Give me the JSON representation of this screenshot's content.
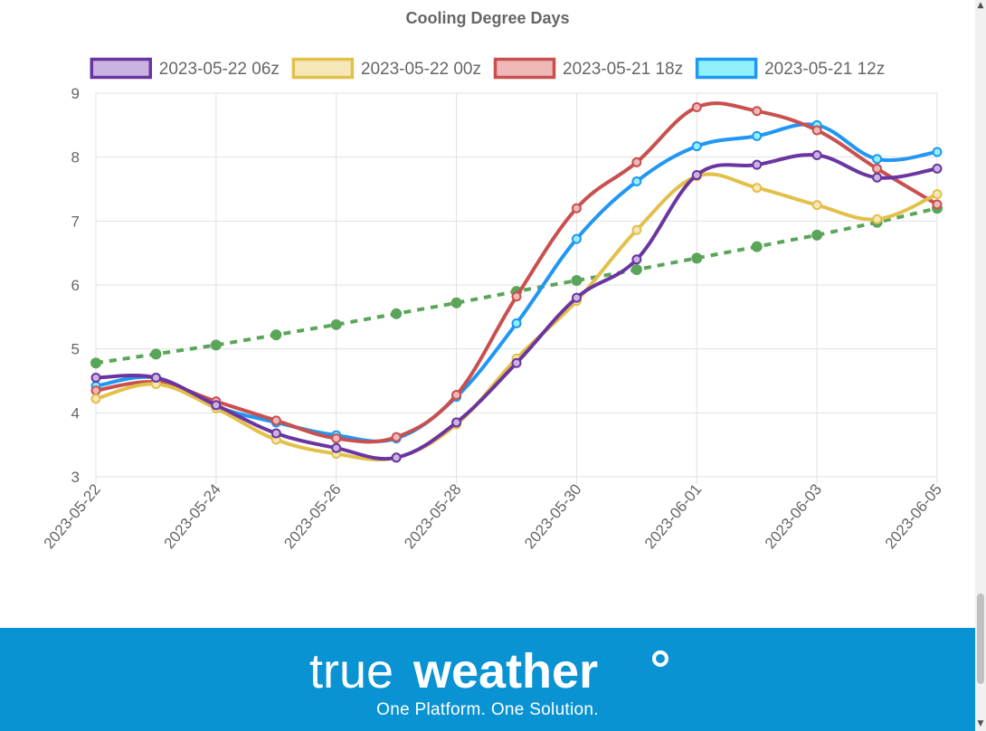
{
  "chart_data": {
    "type": "line",
    "title": "Cooling Degree Days",
    "x": [
      "2023-05-22",
      "2023-05-23",
      "2023-05-24",
      "2023-05-25",
      "2023-05-26",
      "2023-05-27",
      "2023-05-28",
      "2023-05-29",
      "2023-05-30",
      "2023-05-31",
      "2023-06-01",
      "2023-06-02",
      "2023-06-03",
      "2023-06-04",
      "2023-06-05"
    ],
    "x_tick_labels": [
      "2023-05-22",
      "2023-05-24",
      "2023-05-26",
      "2023-05-28",
      "2023-05-30",
      "2023-06-01",
      "2023-06-03",
      "2023-06-05"
    ],
    "ylim": [
      3,
      9
    ],
    "y_ticks": [
      3,
      4,
      5,
      6,
      7,
      8,
      9
    ],
    "grid": true,
    "legend_position": "top",
    "series": [
      {
        "name": "2023-05-22 06z",
        "color": "#6a35a0",
        "fill": "#c9b3e0",
        "values": [
          4.55,
          4.55,
          4.12,
          3.68,
          3.45,
          3.3,
          3.85,
          4.78,
          5.8,
          6.4,
          7.72,
          7.88,
          8.03,
          7.68,
          7.82
        ]
      },
      {
        "name": "2023-05-22 00z",
        "color": "#e3c04a",
        "fill": "#f5e7b8",
        "values": [
          4.22,
          4.45,
          4.07,
          3.58,
          3.36,
          3.3,
          3.82,
          4.85,
          5.75,
          6.86,
          7.7,
          7.52,
          7.25,
          7.03,
          7.42
        ]
      },
      {
        "name": "2023-05-21 18z",
        "color": "#c8504e",
        "fill": "#edb8b7",
        "values": [
          4.35,
          4.48,
          4.18,
          3.88,
          3.6,
          3.62,
          4.28,
          5.82,
          7.2,
          7.92,
          8.78,
          8.72,
          8.42,
          7.82,
          7.26
        ]
      },
      {
        "name": "2023-05-21 12z",
        "color": "#2196f3",
        "fill": "#8ff2fb",
        "values": [
          4.42,
          4.55,
          4.1,
          3.85,
          3.65,
          3.6,
          4.25,
          5.4,
          6.72,
          7.62,
          8.17,
          8.33,
          8.5,
          7.97,
          8.08
        ]
      },
      {
        "name": "",
        "color": "#5aa55a",
        "dashed": true,
        "values": [
          4.78,
          4.92,
          5.06,
          5.22,
          5.38,
          5.55,
          5.72,
          5.9,
          6.07,
          6.24,
          6.42,
          6.6,
          6.78,
          6.98,
          7.2
        ]
      }
    ]
  },
  "footer": {
    "brand_prefix": "true",
    "brand_suffix": "weather",
    "tagline": "One Platform. One Solution.",
    "background_color": "#0a93d3"
  },
  "scrollbar": {
    "up_arrow_icon": "chevron-up-icon",
    "down_arrow_icon": "chevron-down-icon"
  }
}
